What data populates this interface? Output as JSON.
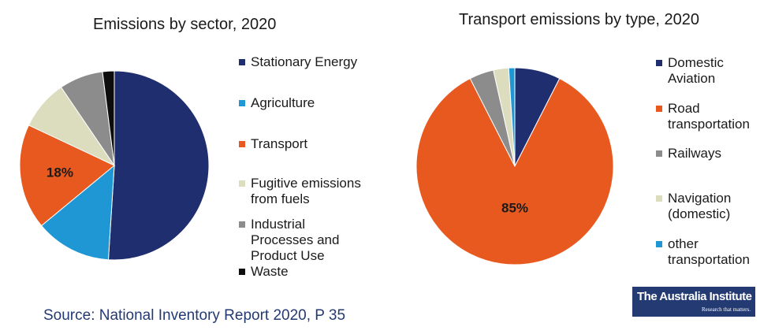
{
  "chart_data": [
    {
      "type": "pie",
      "title": "Emissions by sector, 2020",
      "start_angle_deg": 0,
      "slices": [
        {
          "label": "Stationary Energy",
          "value": 51,
          "color": "#1f2e6e"
        },
        {
          "label": "Agriculture",
          "value": 13,
          "color": "#1f97d4"
        },
        {
          "label": "Transport",
          "value": 18,
          "color": "#e8591f"
        },
        {
          "label": "Fugitive emissions from fuels",
          "value": 8.5,
          "color": "#dcdcbf"
        },
        {
          "label": "Industrial Processes and Product Use",
          "value": 7.5,
          "color": "#8c8c8c"
        },
        {
          "label": "Waste",
          "value": 2,
          "color": "#0d0d0d"
        }
      ],
      "data_labels": [
        {
          "slice": "Transport",
          "text": "18%"
        }
      ],
      "legend_position": "right"
    },
    {
      "type": "pie",
      "title": "Transport emissions by type, 2020",
      "start_angle_deg": 0,
      "slices": [
        {
          "label": "Domestic Aviation",
          "value": 7.5,
          "color": "#1f2e6e"
        },
        {
          "label": "Road transportation",
          "value": 85,
          "color": "#e8591f"
        },
        {
          "label": "Railways",
          "value": 4,
          "color": "#8c8c8c"
        },
        {
          "label": "Navigation (domestic)",
          "value": 2.5,
          "color": "#dcdcbf"
        },
        {
          "label": "other transportation",
          "value": 1,
          "color": "#1f97d4"
        }
      ],
      "data_labels": [
        {
          "slice": "Road transportation",
          "text": "85%"
        }
      ],
      "legend_position": "right"
    }
  ],
  "legends": {
    "left": [
      {
        "lines": [
          "Stationary Energy"
        ],
        "color": "#1f2e6e"
      },
      {
        "lines": [
          "Agriculture"
        ],
        "color": "#1f97d4"
      },
      {
        "lines": [
          "Transport"
        ],
        "color": "#e8591f"
      },
      {
        "lines": [
          "Fugitive emissions",
          "from fuels"
        ],
        "color": "#dcdcbf"
      },
      {
        "lines": [
          "Industrial",
          "Processes and",
          "Product Use"
        ],
        "color": "#8c8c8c"
      },
      {
        "lines": [
          "Waste"
        ],
        "color": "#0d0d0d"
      }
    ],
    "right": [
      {
        "lines": [
          "Domestic",
          "Aviation"
        ],
        "color": "#1f2e6e"
      },
      {
        "lines": [
          "Road",
          "transportation"
        ],
        "color": "#e8591f"
      },
      {
        "lines": [
          "Railways"
        ],
        "color": "#8c8c8c"
      },
      {
        "lines": [
          "Navigation",
          "(domestic)"
        ],
        "color": "#dcdcbf"
      },
      {
        "lines": [
          "other",
          "transportation"
        ],
        "color": "#1f97d4"
      }
    ]
  },
  "source": "Source: National Inventory Report 2020, P 35",
  "logo": {
    "name": "The Australia Institute",
    "tagline": "Research that matters."
  }
}
